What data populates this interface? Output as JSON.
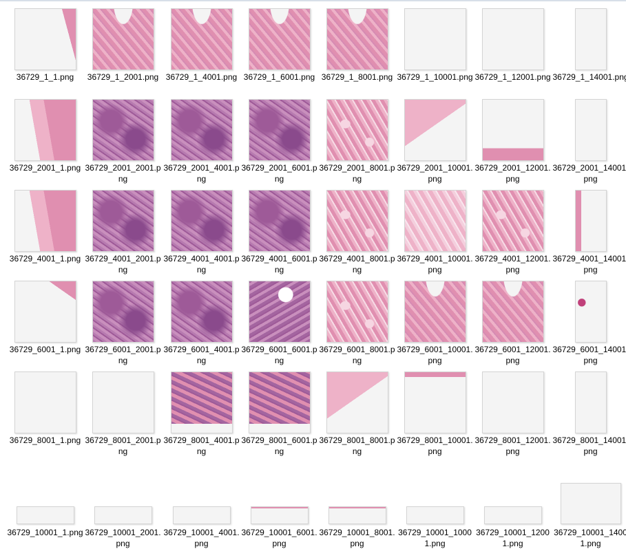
{
  "colors": {
    "background": "#ffffff",
    "thumb_border": "#d4d4d4",
    "blank": "#f4f4f4",
    "tissue_pink": "#e08fb0",
    "tissue_purple": "#9e5a98",
    "tissue_light": "#eeb2c8"
  },
  "rows": [
    {
      "kind": "square",
      "items": [
        {
          "name": "36729_1_1.png",
          "fill": "edge-left"
        },
        {
          "name": "36729_1_2001.png",
          "fill": "stroma-top"
        },
        {
          "name": "36729_1_4001.png",
          "fill": "stroma-top"
        },
        {
          "name": "36729_1_6001.png",
          "fill": "stroma-top"
        },
        {
          "name": "36729_1_8001.png",
          "fill": "stroma-top"
        },
        {
          "name": "36729_1_10001.png",
          "fill": "blank"
        },
        {
          "name": "36729_1_12001.png",
          "fill": "blank"
        },
        {
          "name": "36729_1_14001.png",
          "fill": "blank-narrow"
        }
      ]
    },
    {
      "kind": "square",
      "items": [
        {
          "name": "36729_2001_1.png",
          "fill": "edge-right"
        },
        {
          "name": "36729_2001_2001.png",
          "fill": "tumor"
        },
        {
          "name": "36729_2001_4001.png",
          "fill": "tumor"
        },
        {
          "name": "36729_2001_6001.png",
          "fill": "tumor"
        },
        {
          "name": "36729_2001_8001.png",
          "fill": "stroma"
        },
        {
          "name": "36729_2001_10001.png",
          "fill": "corner-top-left"
        },
        {
          "name": "36729_2001_12001.png",
          "fill": "bottom-strip"
        },
        {
          "name": "36729_2001_14001.png",
          "fill": "blank-narrow"
        }
      ]
    },
    {
      "kind": "square",
      "items": [
        {
          "name": "36729_4001_1.png",
          "fill": "edge-right"
        },
        {
          "name": "36729_4001_2001.png",
          "fill": "tumor"
        },
        {
          "name": "36729_4001_4001.png",
          "fill": "tumor"
        },
        {
          "name": "36729_4001_6001.png",
          "fill": "tumor"
        },
        {
          "name": "36729_4001_8001.png",
          "fill": "stroma"
        },
        {
          "name": "36729_4001_10001.png",
          "fill": "stroma-light"
        },
        {
          "name": "36729_4001_12001.png",
          "fill": "stroma"
        },
        {
          "name": "36729_4001_14001.png",
          "fill": "narrow-edge"
        }
      ]
    },
    {
      "kind": "square",
      "items": [
        {
          "name": "36729_6001_1.png",
          "fill": "corner-top-right"
        },
        {
          "name": "36729_6001_2001.png",
          "fill": "tumor"
        },
        {
          "name": "36729_6001_4001.png",
          "fill": "tumor"
        },
        {
          "name": "36729_6001_6001.png",
          "fill": "tumor-hole"
        },
        {
          "name": "36729_6001_8001.png",
          "fill": "stroma"
        },
        {
          "name": "36729_6001_10001.png",
          "fill": "stroma-top"
        },
        {
          "name": "36729_6001_12001.png",
          "fill": "stroma-top"
        },
        {
          "name": "36729_6001_14001.png",
          "fill": "narrow-speck"
        }
      ]
    },
    {
      "kind": "square",
      "items": [
        {
          "name": "36729_8001_1.png",
          "fill": "blank"
        },
        {
          "name": "36729_8001_2001.png",
          "fill": "blank"
        },
        {
          "name": "36729_8001_4001.png",
          "fill": "tumor-top"
        },
        {
          "name": "36729_8001_6001.png",
          "fill": "tumor-top"
        },
        {
          "name": "36729_8001_8001.png",
          "fill": "corner-top-left"
        },
        {
          "name": "36729_8001_10001.png",
          "fill": "top-strip"
        },
        {
          "name": "36729_8001_12001.png",
          "fill": "blank"
        },
        {
          "name": "36729_8001_14001.png",
          "fill": "blank-narrow"
        }
      ]
    },
    {
      "kind": "flat",
      "items": [
        {
          "name": "36729_10001_1.png",
          "fill": "blank"
        },
        {
          "name": "36729_10001_2001.png",
          "fill": "blank"
        },
        {
          "name": "36729_10001_4001.png",
          "fill": "blank"
        },
        {
          "name": "36729_10001_6001.png",
          "fill": "top-strip"
        },
        {
          "name": "36729_10001_8001.png",
          "fill": "top-strip"
        },
        {
          "name": "36729_10001_10001.png",
          "fill": "blank"
        },
        {
          "name": "36729_10001_12001.png",
          "fill": "blank"
        },
        {
          "name": "36729_10001_14001.png",
          "fill": "blank-tall"
        }
      ]
    }
  ]
}
